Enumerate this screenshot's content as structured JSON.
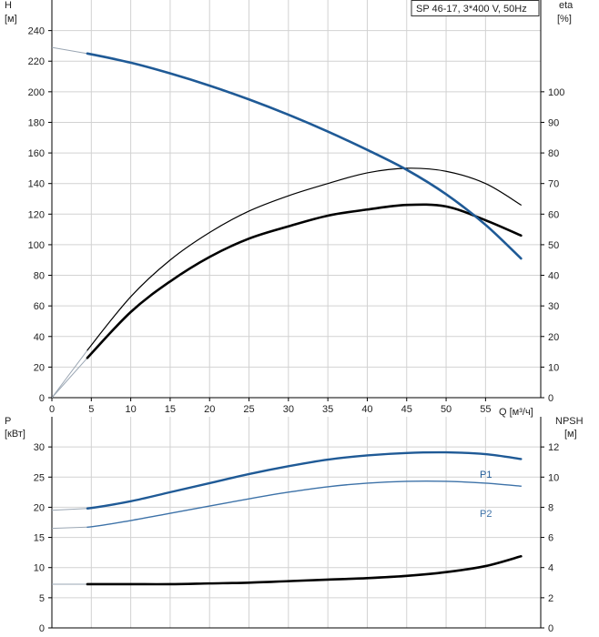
{
  "model_label": "SP 46-17, 3*400 V, 50Hz",
  "colors": {
    "grid": "#d2d2d2",
    "axis": "#000000",
    "h_curve": "#1f5a96",
    "eta_curve": "#000000",
    "p1_curve": "#1f5a96",
    "p2_curve": "#3d72a8",
    "npsh_curve": "#000000",
    "extrapolated": "#9aa6b3"
  },
  "chart_data": [
    {
      "type": "line",
      "panel": "top",
      "ylabel_left": "H",
      "ylabel_left_unit": "[м]",
      "ylabel_right": "eta",
      "ylabel_right_unit": "[%]",
      "xlabel": "Q [м³/ч]",
      "xlim": [
        0,
        62
      ],
      "ylim_left": [
        0,
        260
      ],
      "ylim_right": [
        0,
        130
      ],
      "x_ticks": [
        0,
        5,
        10,
        15,
        20,
        25,
        30,
        35,
        40,
        45,
        50,
        55
      ],
      "y_ticks_left": [
        0,
        20,
        40,
        60,
        80,
        100,
        120,
        140,
        160,
        180,
        200,
        220,
        240
      ],
      "y_ticks_right": [
        0,
        10,
        20,
        30,
        40,
        50,
        60,
        70,
        80,
        90,
        100
      ],
      "series": [
        {
          "key": "H",
          "axis": "left",
          "x": [
            0,
            4.5,
            10,
            15,
            20,
            25,
            30,
            35,
            40,
            45,
            50,
            55,
            59.5
          ],
          "y": [
            229,
            225,
            219,
            212,
            204,
            195,
            185,
            174,
            162,
            149,
            133,
            113,
            91
          ]
        },
        {
          "key": "eta_pump",
          "axis": "right",
          "x": [
            0,
            4.5,
            10,
            15,
            20,
            25,
            30,
            35,
            40,
            45,
            50,
            55,
            59.5
          ],
          "y": [
            0,
            15.5,
            33,
            45,
            54,
            61,
            66,
            70,
            73.5,
            75,
            74,
            70,
            63
          ]
        },
        {
          "key": "eta_total",
          "axis": "right",
          "x": [
            0,
            4.5,
            10,
            15,
            20,
            25,
            30,
            35,
            40,
            45,
            50,
            55,
            59.5
          ],
          "y": [
            0,
            13,
            28,
            38,
            46,
            52,
            56,
            59.5,
            61.5,
            63,
            62.5,
            58,
            53
          ]
        }
      ]
    },
    {
      "type": "line",
      "panel": "bottom",
      "ylabel_left": "P",
      "ylabel_left_unit": "[кВт]",
      "ylabel_right": "NPSH",
      "ylabel_right_unit": "[м]",
      "xlim": [
        0,
        62
      ],
      "ylim_left": [
        0,
        35
      ],
      "ylim_right": [
        0,
        14
      ],
      "y_ticks_left": [
        0,
        5,
        10,
        15,
        20,
        25,
        30
      ],
      "y_ticks_right": [
        0,
        2,
        4,
        6,
        8,
        10,
        12
      ],
      "series": [
        {
          "name": "P1",
          "axis": "left",
          "x": [
            0,
            4.5,
            10,
            15,
            20,
            25,
            30,
            35,
            40,
            45,
            50,
            55,
            59.5
          ],
          "y": [
            19.5,
            19.8,
            21,
            22.5,
            24,
            25.5,
            26.8,
            27.9,
            28.6,
            29,
            29.1,
            28.8,
            28
          ]
        },
        {
          "name": "P2",
          "axis": "left",
          "x": [
            0,
            4.5,
            10,
            15,
            20,
            25,
            30,
            35,
            40,
            45,
            50,
            55,
            59.5
          ],
          "y": [
            16.5,
            16.7,
            17.8,
            19,
            20.2,
            21.4,
            22.5,
            23.4,
            24,
            24.3,
            24.3,
            24,
            23.5
          ]
        },
        {
          "key": "NPSH",
          "axis": "right",
          "x": [
            0,
            4.5,
            10,
            15,
            20,
            25,
            30,
            35,
            40,
            45,
            50,
            55,
            59.5
          ],
          "y": [
            2.9,
            2.9,
            2.9,
            2.9,
            2.95,
            3.0,
            3.1,
            3.2,
            3.3,
            3.45,
            3.7,
            4.1,
            4.75
          ]
        }
      ]
    }
  ]
}
